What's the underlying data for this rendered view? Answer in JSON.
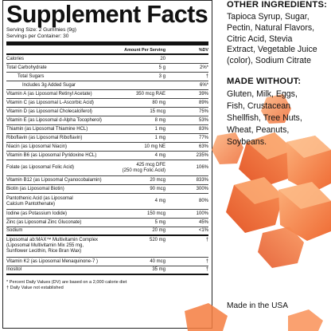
{
  "panel": {
    "title": "Supplement Facts",
    "serving_size": "Serving Size: 2 Gummies (9g)",
    "servings_per_container": "Servings per Container: 30",
    "col_amount": "Amount Per Serving",
    "col_dv": "%DV",
    "rows": [
      {
        "name": "Calories",
        "amount": "20",
        "dv": ""
      },
      {
        "name": "Total Carbohydrate",
        "amount": "5 g",
        "dv": "2%*"
      },
      {
        "name": "Total Sugars",
        "amount": "3 g",
        "dv": "†"
      },
      {
        "name": "Includes 3g Added Sugar",
        "amount": "",
        "dv": "6%*"
      },
      {
        "name": "Vitamin A (as Liposomal Retinyl Acetate)",
        "amount": "350 mcg RAE",
        "dv": "39%"
      },
      {
        "name": "Vitamin C (as Liposomal L-Ascorbic Acid)",
        "amount": "80 mg",
        "dv": "89%"
      },
      {
        "name": "Vitamin D (as Liposomal Cholecalciferol)",
        "amount": "15 mcg",
        "dv": "75%"
      },
      {
        "name": "Vitamin E (as Liposomal d-Alpha Tocopherol)",
        "amount": "8 mg",
        "dv": "53%"
      },
      {
        "name": "Thiamin (as Liposomal Thiamine HCL)",
        "amount": "1 mg",
        "dv": "83%"
      },
      {
        "name": "Riboflavin (as Liposomal Riboflavin)",
        "amount": "1 mg",
        "dv": "77%"
      },
      {
        "name": "Niacin (as Liposomal Niacin)",
        "amount": "10 mg NE",
        "dv": "63%"
      },
      {
        "name": "Vitamin B6 (as Liposomal Pyridoxine HCL)",
        "amount": "4 mg",
        "dv": "235%"
      },
      {
        "name": "Folate (as Liposomal Folic Acid)",
        "amount": "425 mcg DFE",
        "amount2": "(250 mcg Folic Acid)",
        "dv": "106%"
      },
      {
        "name": "Vitamin B12 (as Liposomal Cyanocobalamin)",
        "amount": "20 mcg",
        "dv": "833%"
      },
      {
        "name": "Biotin (as Liposomal Biotin)",
        "amount": "90 mcg",
        "dv": "300%"
      },
      {
        "name": "Pantothenic Acid (as Liposomal",
        "name2": "Calcium Pantothenate)",
        "amount": "4 mg",
        "dv": "80%"
      },
      {
        "name": "Iodine (as Potassium Iodide)",
        "amount": "150 mcg",
        "dv": "100%"
      },
      {
        "name": "Zinc (as Liposomal Zinc Gluconate)",
        "amount": "5 mg",
        "dv": "45%"
      },
      {
        "name": "Sodium",
        "amount": "20 mg",
        "dv": "<1%"
      },
      {
        "name": "Liposomal ab:MAX™ Multivitamin Complex",
        "name2": "(Liposomal Multivitamin Mix 255 mg,",
        "name3": "Sunflower Lecithin, Rice Bran Wax)",
        "amount": "520 mg",
        "dv": "†"
      },
      {
        "name": "Vitamin K2 (as Liposomal Menaquinone-7 )",
        "amount": "40 mcg",
        "dv": "†"
      },
      {
        "name": "Inositol",
        "amount": "35 mg",
        "dv": "†"
      }
    ],
    "footnote1": "* Percent Daily Values (DV) are based on a 2,000 calorie diet",
    "footnote2": "† Daily Value not established"
  },
  "other_ingredients": {
    "heading": "OTHER INGREDIENTS:",
    "lines": [
      "Tapioca Syrup, Sugar,",
      "Pectin, Natural Flavors,",
      "Citric Acid, Stevia",
      "Extract, Vegetable Juice",
      "(color), Sodium Citrate"
    ]
  },
  "made_without": {
    "heading": "MADE WITHOUT:",
    "lines": [
      "Gluten, Milk, Eggs,",
      "Fish, Crustacean",
      "Shellfish, Tree Nuts,",
      "Wheat, Peanuts,",
      "Soybeans."
    ]
  },
  "made_in": "Made in the USA",
  "colors": {
    "gummy_light": "#fba36a",
    "gummy_mid": "#f47a3c",
    "gummy_dark": "#e2582a"
  }
}
